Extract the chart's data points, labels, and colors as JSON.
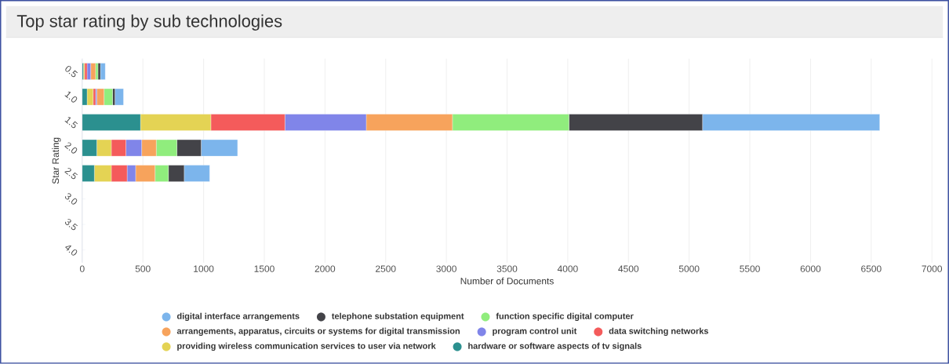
{
  "chart_data": {
    "type": "bar",
    "title": "Top star rating by sub technologies",
    "xlabel": "Number of Documents",
    "ylabel": "Star Rating",
    "orientation": "horizontal",
    "stacked": true,
    "categories": [
      "0.5",
      "1.0",
      "1.5",
      "2.0",
      "2.5",
      "3.0",
      "3.5",
      "4.0"
    ],
    "series": [
      {
        "name": "hardware or software aspects of tv signals",
        "color": "#2b908f",
        "values": [
          10,
          40,
          480,
          120,
          100,
          null,
          null,
          null
        ]
      },
      {
        "name": "providing wireless communication services to user via network",
        "color": "#e4d354",
        "values": [
          10,
          50,
          580,
          120,
          140,
          null,
          null,
          null
        ]
      },
      {
        "name": "data switching networks",
        "color": "#f45b5b",
        "values": [
          20,
          20,
          610,
          120,
          130,
          null,
          null,
          null
        ]
      },
      {
        "name": "program control unit",
        "color": "#8085e9",
        "values": [
          30,
          10,
          670,
          130,
          70,
          null,
          null,
          null
        ]
      },
      {
        "name": "arrangements, apparatus, circuits or systems for digital transmission",
        "color": "#f7a35c",
        "values": [
          40,
          60,
          710,
          120,
          160,
          null,
          null,
          null
        ]
      },
      {
        "name": "function specific digital computer",
        "color": "#90ed7d",
        "values": [
          20,
          70,
          960,
          170,
          110,
          null,
          null,
          null
        ]
      },
      {
        "name": "telephone substation equipment",
        "color": "#434348",
        "values": [
          20,
          20,
          1100,
          200,
          130,
          null,
          null,
          null
        ]
      },
      {
        "name": "digital interface arrangements",
        "color": "#7cb5ec",
        "values": [
          40,
          70,
          1460,
          300,
          210,
          null,
          null,
          null
        ]
      }
    ],
    "xlim": [
      0,
      7000
    ],
    "xticks": [
      0,
      500,
      1000,
      1500,
      2000,
      2500,
      3000,
      3500,
      4000,
      4500,
      5000,
      5500,
      6000,
      6500,
      7000
    ],
    "grid": "x",
    "legend": "bottom"
  }
}
